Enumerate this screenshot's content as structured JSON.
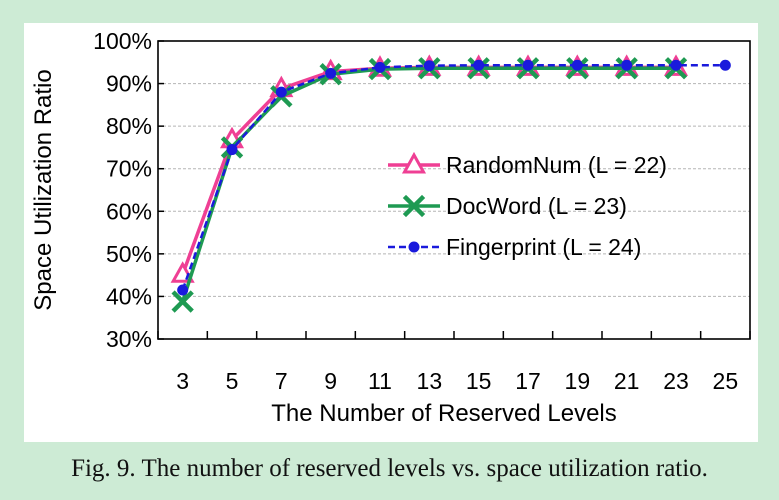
{
  "caption": "Fig. 9.  The number of reserved levels vs. space utilization ratio.",
  "chart_data": {
    "type": "line",
    "xlabel": "The Number of Reserved Levels",
    "ylabel": "Space Utilization Ratio",
    "x_ticks": [
      "3",
      "5",
      "7",
      "9",
      "11",
      "13",
      "15",
      "17",
      "19",
      "21",
      "23",
      "25"
    ],
    "y_ticks": [
      "30%",
      "40%",
      "50%",
      "60%",
      "70%",
      "80%",
      "90%",
      "100%"
    ],
    "xlim": [
      2,
      26
    ],
    "ylim": [
      30,
      100
    ],
    "grid": "horizontal dashed",
    "legend_position": "right",
    "series": [
      {
        "name": "RandomNum (L = 22)",
        "color": "#ef3f94",
        "marker": "triangle-open",
        "line": "solid",
        "x": [
          3,
          5,
          7,
          9,
          11,
          13,
          15,
          17,
          19,
          21,
          23
        ],
        "y": [
          45.2,
          76.8,
          88.8,
          92.8,
          93.6,
          93.8,
          93.8,
          93.8,
          93.8,
          93.8,
          93.8
        ]
      },
      {
        "name": "DocWord (L = 23)",
        "color": "#1e9a52",
        "marker": "x",
        "line": "solid",
        "x": [
          3,
          5,
          7,
          9,
          11,
          13,
          15,
          17,
          19,
          21,
          23
        ],
        "y": [
          38.8,
          75.0,
          87.0,
          92.2,
          93.4,
          93.6,
          93.6,
          93.6,
          93.6,
          93.6,
          93.6
        ]
      },
      {
        "name": "Fingerprint (L = 24)",
        "color": "#1a1adc",
        "marker": "circle-filled",
        "line": "dashed",
        "x": [
          3,
          5,
          7,
          9,
          11,
          13,
          15,
          17,
          19,
          21,
          23,
          25
        ],
        "y": [
          41.5,
          74.5,
          88.0,
          92.4,
          93.8,
          94.2,
          94.3,
          94.3,
          94.3,
          94.3,
          94.3,
          94.3
        ]
      }
    ]
  }
}
